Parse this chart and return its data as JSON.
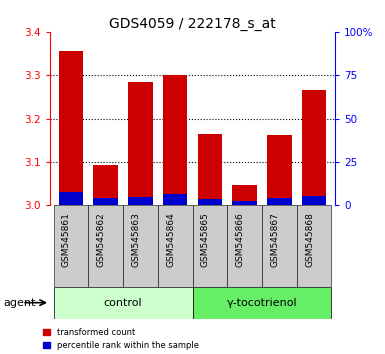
{
  "title": "GDS4059 / 222178_s_at",
  "samples": [
    "GSM545861",
    "GSM545862",
    "GSM545863",
    "GSM545864",
    "GSM545865",
    "GSM545866",
    "GSM545867",
    "GSM545868"
  ],
  "red_values": [
    3.355,
    3.093,
    3.285,
    3.3,
    3.165,
    3.048,
    3.163,
    3.265
  ],
  "blue_values": [
    0.03,
    0.018,
    0.02,
    0.025,
    0.015,
    0.01,
    0.018,
    0.022
  ],
  "baseline": 3.0,
  "ylim": [
    3.0,
    3.4
  ],
  "yticks": [
    3.0,
    3.1,
    3.2,
    3.3,
    3.4
  ],
  "right_yticks": [
    0,
    25,
    50,
    75,
    100
  ],
  "right_ylim": [
    0,
    100
  ],
  "right_yticklabels": [
    "0",
    "25",
    "50",
    "75",
    "100%"
  ],
  "groups": [
    {
      "label": "control",
      "indices": [
        0,
        1,
        2,
        3
      ],
      "color": "#ccffcc"
    },
    {
      "label": "γ-tocotrienol",
      "indices": [
        4,
        5,
        6,
        7
      ],
      "color": "#66ee66"
    }
  ],
  "agent_label": "agent",
  "red_color": "#cc0000",
  "blue_color": "#0000cc",
  "bar_bg_color": "#cccccc",
  "bar_width": 0.7,
  "legend_items": [
    {
      "color": "#cc0000",
      "label": "transformed count"
    },
    {
      "color": "#0000cc",
      "label": "percentile rank within the sample"
    }
  ],
  "title_fontsize": 10,
  "tick_fontsize": 7.5,
  "label_fontsize": 8,
  "sample_fontsize": 6.5
}
